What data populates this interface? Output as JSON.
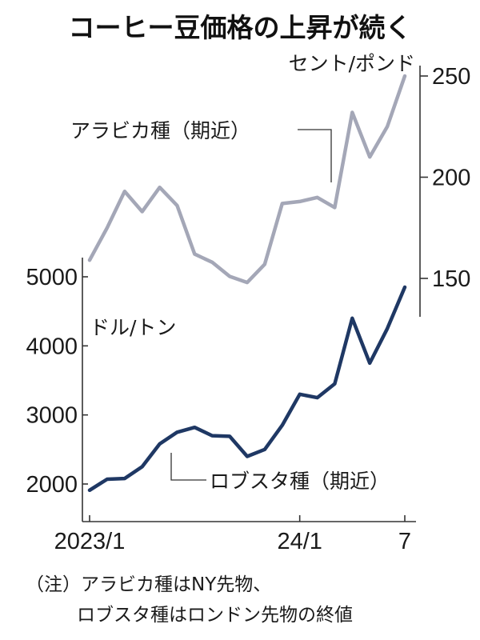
{
  "chart_data": {
    "type": "line",
    "title": "コーヒー豆価格の上昇が続く",
    "x_axis": {
      "ticks": [
        "2023/1",
        "24/1",
        "7"
      ]
    },
    "series": [
      {
        "name": "アラビカ種（期近）",
        "axis": "right",
        "unit": "セント/ポンド",
        "color": "#a4a7b7",
        "x": [
          "2023-01",
          "2023-02",
          "2023-03",
          "2023-04",
          "2023-05",
          "2023-06",
          "2023-07",
          "2023-08",
          "2023-09",
          "2023-10",
          "2023-11",
          "2023-12",
          "2024-01",
          "2024-02",
          "2024-03",
          "2024-04",
          "2024-05",
          "2024-06",
          "2024-07"
        ],
        "values": [
          159,
          175,
          193,
          183,
          195,
          186,
          162,
          158,
          151,
          148,
          157,
          187,
          188,
          190,
          185,
          232,
          210,
          225,
          250
        ]
      },
      {
        "name": "ロブスタ種（期近）",
        "axis": "left",
        "unit": "ドル/トン",
        "color": "#1f3864",
        "x": [
          "2023-01",
          "2023-02",
          "2023-03",
          "2023-04",
          "2023-05",
          "2023-06",
          "2023-07",
          "2023-08",
          "2023-09",
          "2023-10",
          "2023-11",
          "2023-12",
          "2024-01",
          "2024-02",
          "2024-03",
          "2024-04",
          "2024-05",
          "2024-06",
          "2024-07"
        ],
        "values": [
          1910,
          2070,
          2080,
          2250,
          2580,
          2750,
          2820,
          2700,
          2690,
          2400,
          2500,
          2850,
          3300,
          3250,
          3450,
          4400,
          3750,
          4250,
          4850
        ]
      }
    ],
    "y_left": {
      "ticks": [
        2000,
        3000,
        4000,
        5000
      ],
      "ylim": [
        1800,
        5400
      ],
      "unit": "ドル/トン"
    },
    "y_right": {
      "ticks": [
        150,
        200,
        250
      ],
      "ylim": [
        133,
        268
      ],
      "unit": "セント/ポンド"
    },
    "annotations": {
      "arabica_label": "アラビカ種（期近）",
      "robusta_label": "ロブスタ種（期近）"
    },
    "note_lines": [
      "（注）アラビカ種はNY先物、",
      "ロブスタ種はロンドン先物の終値"
    ],
    "grid": false
  }
}
